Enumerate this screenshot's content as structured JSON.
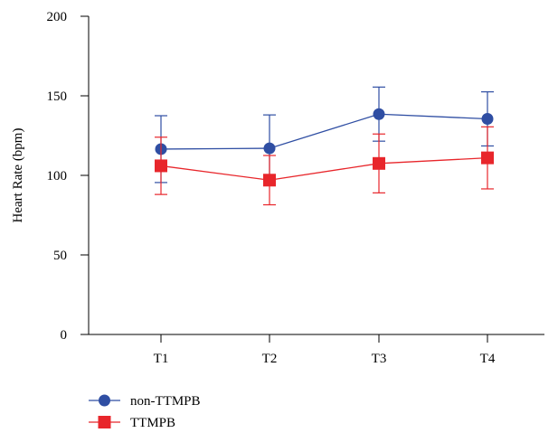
{
  "chart_data": {
    "type": "line",
    "title": "",
    "xlabel": "",
    "ylabel": "Heart Rate (bpm)",
    "categories": [
      "T1",
      "T2",
      "T3",
      "T4"
    ],
    "ylim": [
      0,
      200
    ],
    "yticks": [
      0,
      50,
      100,
      150,
      200
    ],
    "grid": false,
    "legend_position": "bottom-left",
    "series": [
      {
        "name": "non-TTMPB",
        "color": "#2f4ea3",
        "marker": "circle",
        "values": [
          116.5,
          117,
          138.5,
          135.5
        ],
        "error": [
          21,
          21,
          17,
          17
        ]
      },
      {
        "name": "TTMPB",
        "color": "#e8262b",
        "marker": "square",
        "values": [
          106,
          97,
          107.5,
          111
        ],
        "error": [
          18,
          15.5,
          18.5,
          19.5
        ]
      }
    ]
  }
}
